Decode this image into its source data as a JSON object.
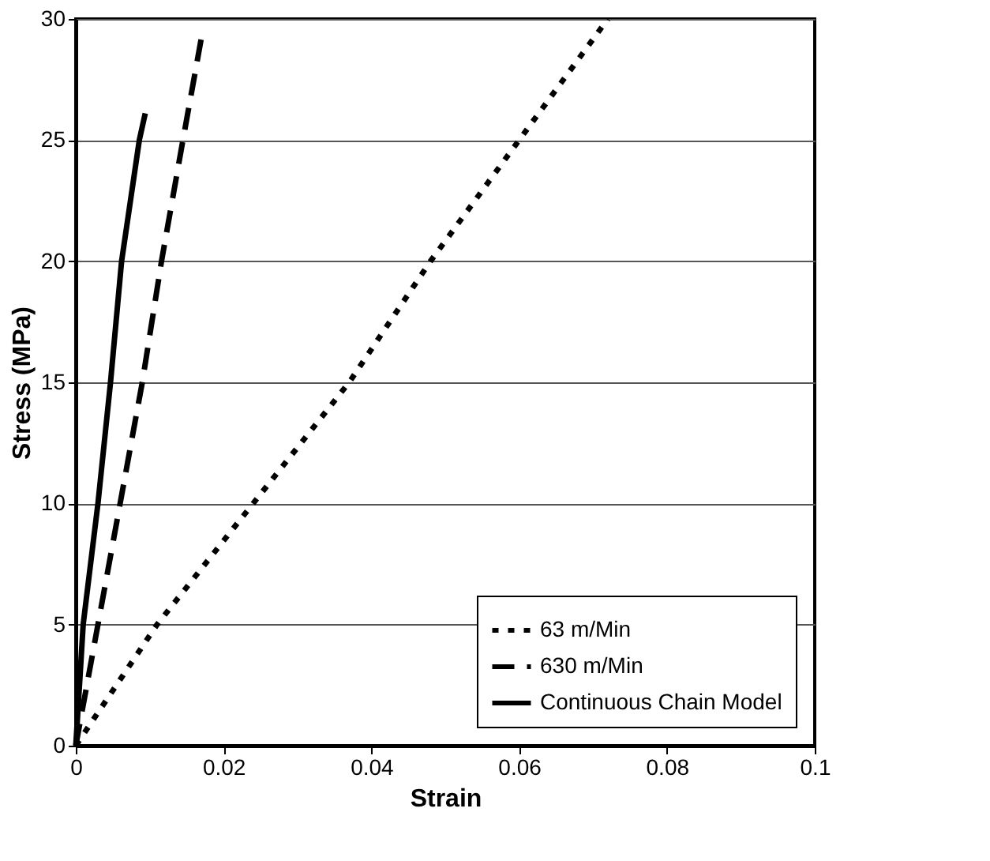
{
  "chart_data": {
    "type": "line",
    "xlabel": "Strain",
    "ylabel": "Stress (MPa)",
    "xlim": [
      0,
      0.1
    ],
    "xticks": [
      0,
      0.02,
      0.04,
      0.06,
      0.08,
      0.1
    ],
    "ylim": [
      0,
      30
    ],
    "yticks": [
      0,
      5,
      10,
      15,
      20,
      25,
      30
    ],
    "grid": "y",
    "legend": "bottom right",
    "marker": "none",
    "series": [
      {
        "name": "63 m/Min",
        "color": "#000000",
        "line_style": "dotted",
        "x": [
          0,
          0.011,
          0.024,
          0.037,
          0.048,
          0.06,
          0.072
        ],
        "values": [
          0,
          5,
          10,
          15,
          20,
          25,
          30
        ]
      },
      {
        "name": "630 m/Min",
        "color": "#000000",
        "line_style": "dashed",
        "x": [
          0,
          0.003,
          0.006,
          0.009,
          0.0116,
          0.0145,
          0.0171
        ],
        "values": [
          0,
          5,
          10,
          15,
          20,
          25,
          29.4
        ]
      },
      {
        "name": "Continuous Chain Model",
        "color": "#000000",
        "line_style": "solid",
        "x": [
          0,
          0.001,
          0.003,
          0.0047,
          0.0062,
          0.0086,
          0.0094
        ],
        "values": [
          0,
          5,
          10,
          15,
          20,
          25,
          26.1
        ]
      }
    ]
  }
}
